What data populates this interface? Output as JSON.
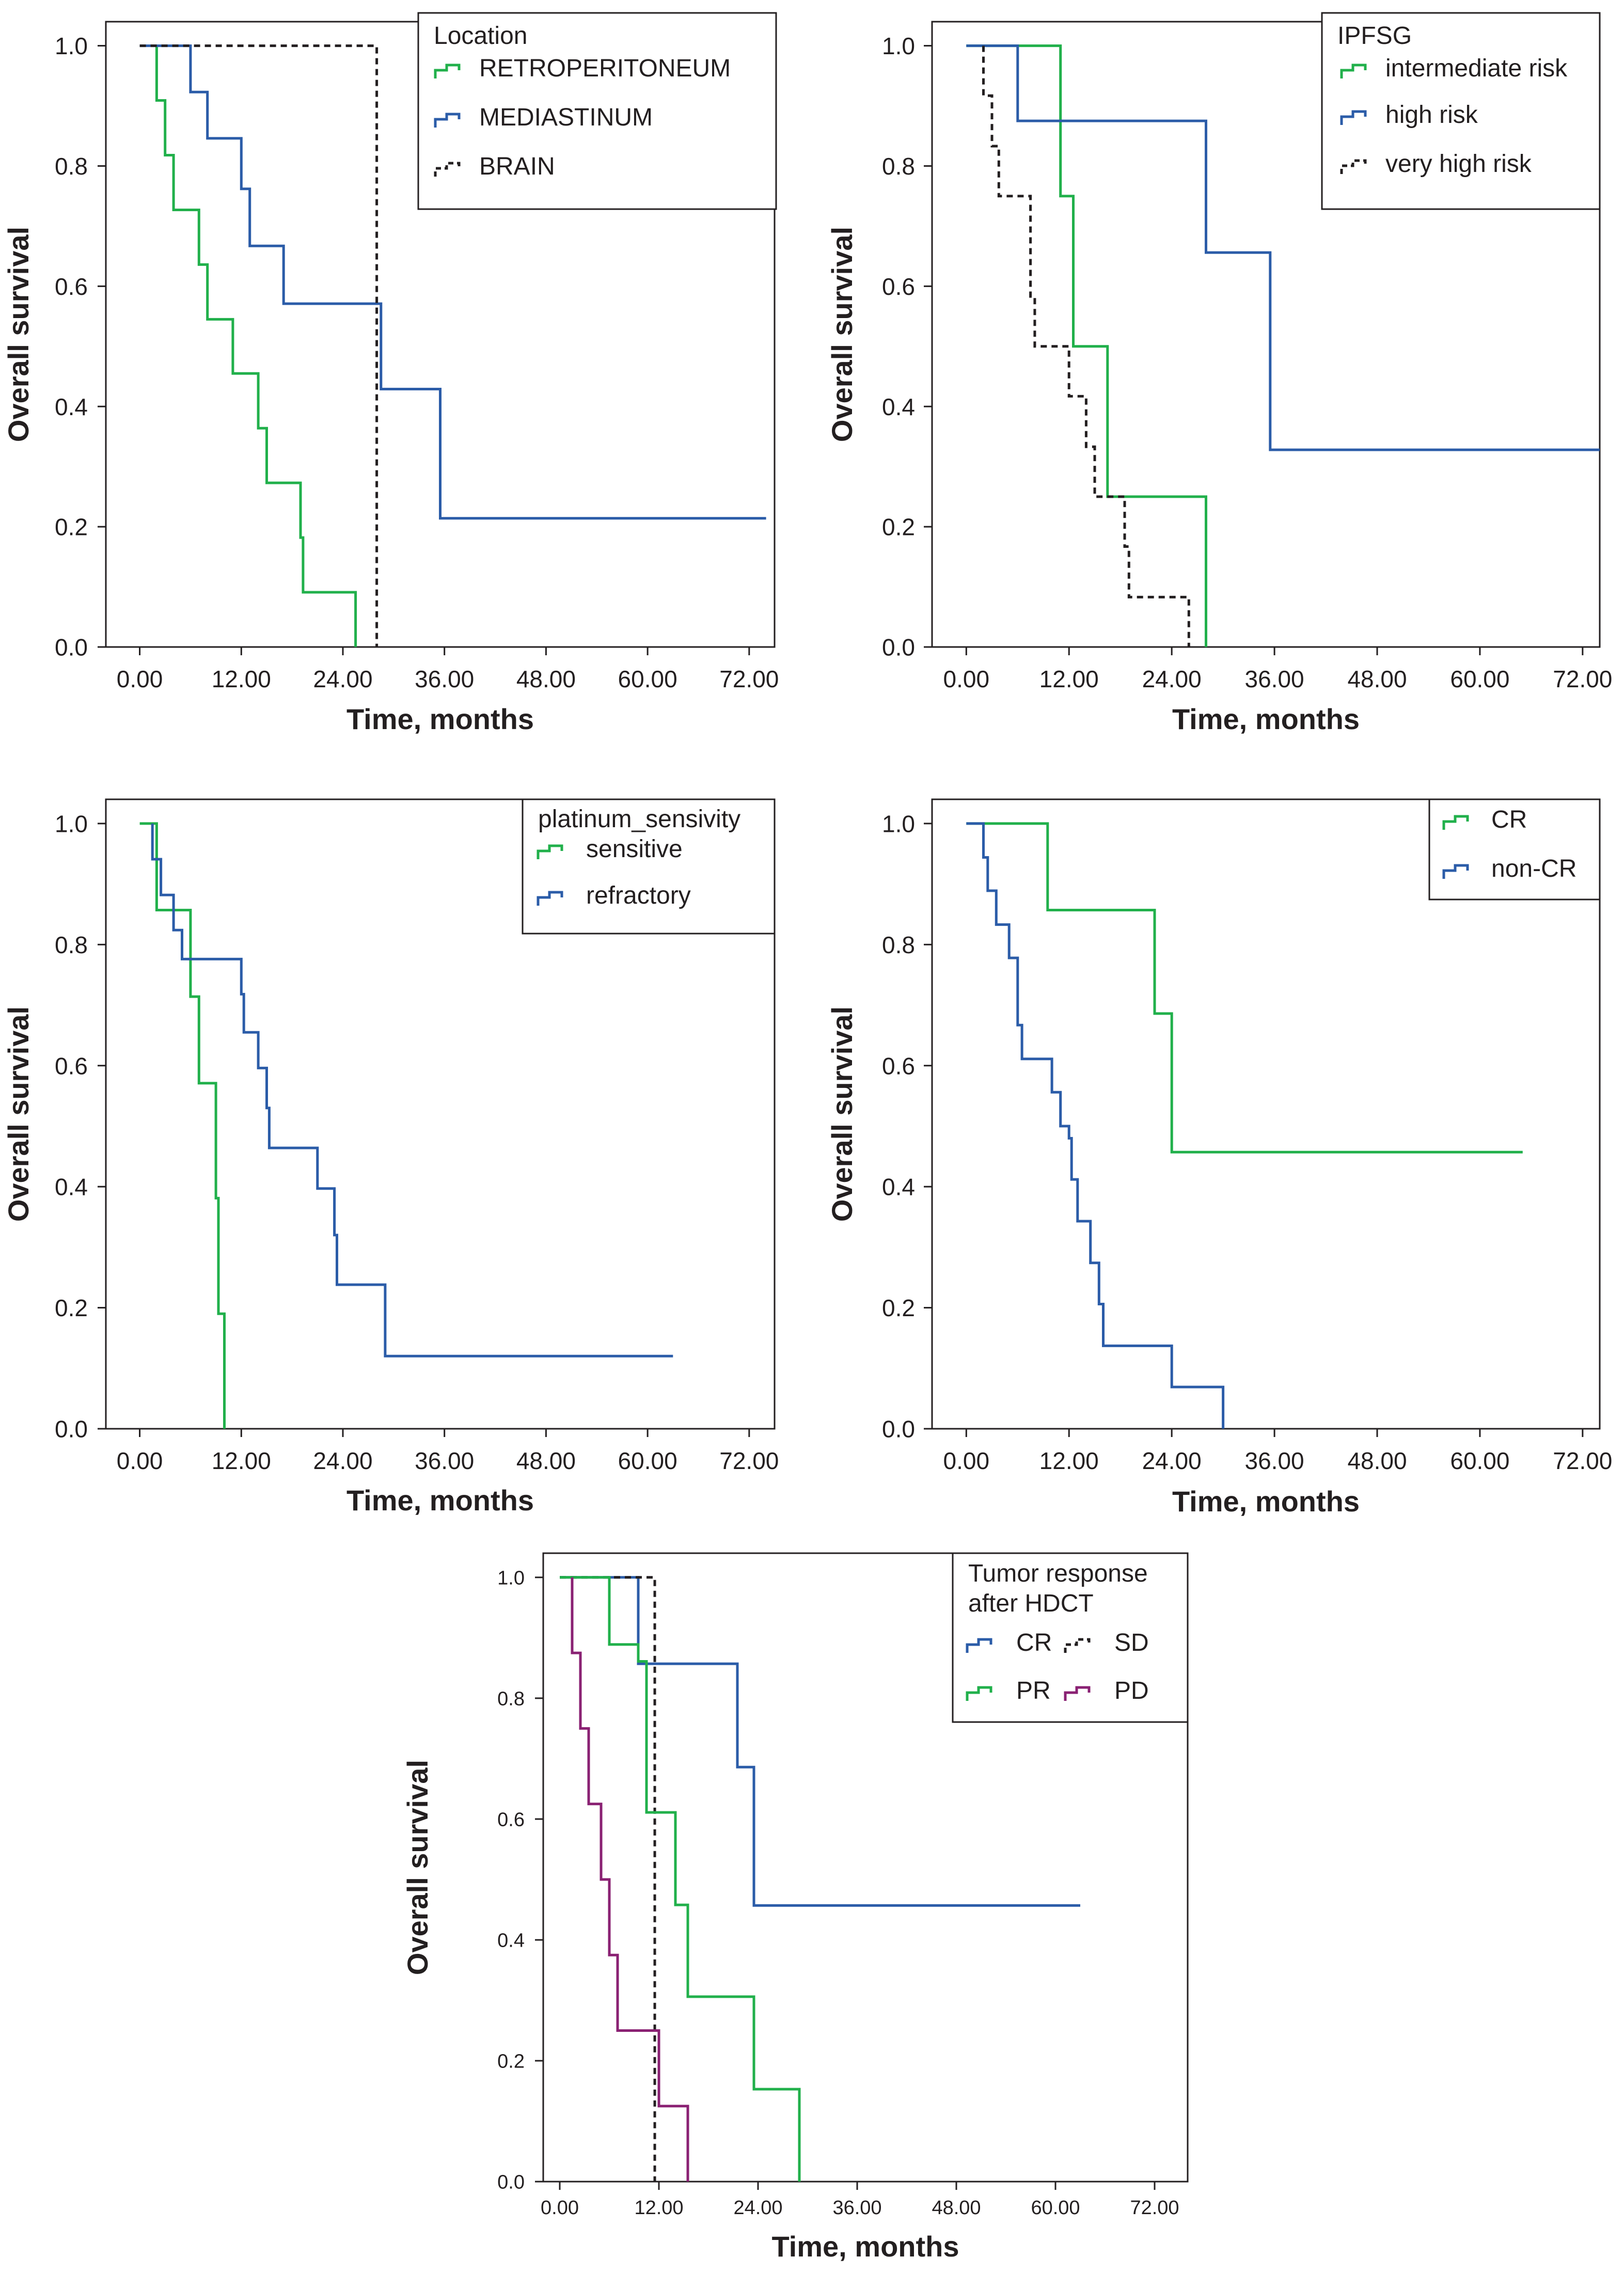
{
  "colors": {
    "green": "#21b04b",
    "blue": "#2b5ca8",
    "black": "#231f20",
    "purple": "#8a2173"
  },
  "chart_data": [
    {
      "id": "location",
      "type": "line",
      "step": true,
      "xlabel": "Time, months",
      "ylabel": "Overall survival",
      "xticks": [
        "0.00",
        "12.00",
        "24.00",
        "36.00",
        "48.00",
        "60.00",
        "72.00"
      ],
      "yticks": [
        "0.0",
        "0.2",
        "0.4",
        "0.6",
        "0.8",
        "1.0"
      ],
      "xlim": [
        -4,
        75
      ],
      "ylim": [
        0,
        1.04
      ],
      "legend": {
        "title": [
          "Location"
        ],
        "columns": 1
      },
      "series": [
        {
          "name": "RETROPERITONEUM",
          "color": "#21b04b",
          "dash": false,
          "x": [
            2,
            2,
            3,
            3,
            4,
            4,
            7,
            7,
            8,
            8,
            11,
            11,
            14,
            14,
            14.3,
            14.3,
            15,
            15,
            19,
            19,
            19.3,
            19.3,
            25.5,
            25.5
          ],
          "y": [
            1,
            0.909,
            0.909,
            0.818,
            0.818,
            0.727,
            0.727,
            0.636,
            0.636,
            0.545,
            0.545,
            0.455,
            0.455,
            0.364,
            0.364,
            0.364,
            0.364,
            0.273,
            0.273,
            0.182,
            0.182,
            0.091,
            0.091,
            0
          ]
        },
        {
          "name": "MEDIASTINUM",
          "color": "#2b5ca8",
          "dash": false,
          "x": [
            0,
            6,
            6,
            8,
            8,
            12,
            12,
            13,
            13,
            17,
            17,
            28.5,
            28.5,
            35.5,
            35.5,
            74
          ],
          "y": [
            1,
            1,
            0.923,
            0.923,
            0.846,
            0.846,
            0.762,
            0.762,
            0.667,
            0.667,
            0.571,
            0.571,
            0.429,
            0.429,
            0.214,
            0.214
          ]
        },
        {
          "name": "BRAIN",
          "color": "#231f20",
          "dash": true,
          "x": [
            0,
            28,
            28
          ],
          "y": [
            1,
            1,
            0
          ]
        }
      ]
    },
    {
      "id": "ipfsg",
      "type": "line",
      "step": true,
      "xlabel": "Time, months",
      "ylabel": "Overall survival",
      "xticks": [
        "0.00",
        "12.00",
        "24.00",
        "36.00",
        "48.00",
        "60.00",
        "72.00"
      ],
      "yticks": [
        "0.0",
        "0.2",
        "0.4",
        "0.6",
        "0.8",
        "1.0"
      ],
      "xlim": [
        -4,
        74
      ],
      "ylim": [
        0,
        1.04
      ],
      "legend": {
        "title": [
          "IPFSG"
        ],
        "columns": 1
      },
      "series": [
        {
          "name": "intermediate risk",
          "color": "#21b04b",
          "dash": false,
          "x": [
            0,
            11,
            11,
            12.5,
            12.5,
            16.5,
            16.5,
            28,
            28
          ],
          "y": [
            1,
            1,
            0.75,
            0.75,
            0.5,
            0.5,
            0.25,
            0.25,
            0
          ]
        },
        {
          "name": "high risk",
          "color": "#2b5ca8",
          "dash": false,
          "x": [
            0,
            6,
            6,
            28,
            28,
            35.5,
            35.5,
            74
          ],
          "y": [
            1,
            1,
            0.875,
            0.875,
            0.656,
            0.656,
            0.328,
            0.328
          ]
        },
        {
          "name": "very high risk",
          "color": "#231f20",
          "dash": true,
          "x": [
            2,
            2,
            3,
            3,
            3.8,
            3.8,
            6,
            6,
            7.5,
            7.5,
            8,
            8,
            11,
            11,
            12,
            12,
            14,
            14,
            15,
            15,
            18.5,
            18.5,
            19,
            19,
            26,
            26
          ],
          "y": [
            1,
            0.917,
            0.917,
            0.833,
            0.833,
            0.75,
            0.75,
            0.75,
            0.75,
            0.583,
            0.583,
            0.5,
            0.5,
            0.5,
            0.5,
            0.417,
            0.417,
            0.333,
            0.333,
            0.25,
            0.25,
            0.167,
            0.167,
            0.083,
            0.083,
            0
          ]
        }
      ]
    },
    {
      "id": "platinum",
      "type": "line",
      "step": true,
      "xlabel": "Time, months",
      "ylabel": "Overall survival",
      "xticks": [
        "0.00",
        "12.00",
        "24.00",
        "36.00",
        "48.00",
        "60.00",
        "72.00"
      ],
      "yticks": [
        "0.0",
        "0.2",
        "0.4",
        "0.6",
        "0.8",
        "1.0"
      ],
      "xlim": [
        -4,
        75
      ],
      "ylim": [
        0,
        1.04
      ],
      "legend": {
        "title": [
          "platinum_sensivity"
        ],
        "columns": 1
      },
      "series": [
        {
          "name": "sensitive",
          "color": "#21b04b",
          "dash": false,
          "x": [
            0,
            2,
            2,
            6,
            6,
            7,
            7,
            9,
            9,
            9.3,
            9.3,
            10,
            10
          ],
          "y": [
            1,
            1,
            0.857,
            0.857,
            0.714,
            0.714,
            0.571,
            0.571,
            0.381,
            0.381,
            0.19,
            0.19,
            0
          ]
        },
        {
          "name": "refractory",
          "color": "#2b5ca8",
          "dash": false,
          "x": [
            1.5,
            1.5,
            2.5,
            2.5,
            4,
            4,
            5,
            5,
            12,
            12,
            12.3,
            12.3,
            14,
            14,
            15,
            15,
            15.3,
            15.3,
            21,
            21,
            23,
            23,
            23.3,
            23.3,
            29,
            29,
            63
          ],
          "y": [
            1,
            0.941,
            0.941,
            0.882,
            0.882,
            0.824,
            0.824,
            0.776,
            0.776,
            0.718,
            0.718,
            0.655,
            0.655,
            0.596,
            0.596,
            0.53,
            0.53,
            0.464,
            0.464,
            0.397,
            0.397,
            0.32,
            0.32,
            0.238,
            0.238,
            0.12,
            0.12
          ]
        }
      ]
    },
    {
      "id": "cr",
      "type": "line",
      "step": true,
      "xlabel": "Time, months",
      "ylabel": "Overall survival",
      "xticks": [
        "0.00",
        "12.00",
        "24.00",
        "36.00",
        "48.00",
        "60.00",
        "72.00"
      ],
      "yticks": [
        "0.0",
        "0.2",
        "0.4",
        "0.6",
        "0.8",
        "1.0"
      ],
      "xlim": [
        -4,
        74
      ],
      "ylim": [
        0,
        1.04
      ],
      "legend": {
        "title": [],
        "columns": 1
      },
      "series": [
        {
          "name": "CR",
          "color": "#21b04b",
          "dash": false,
          "x": [
            0,
            9.5,
            9.5,
            22,
            22,
            24,
            24,
            65
          ],
          "y": [
            1,
            1,
            0.857,
            0.857,
            0.686,
            0.686,
            0.457,
            0.457
          ]
        },
        {
          "name": "non-CR",
          "color": "#2b5ca8",
          "dash": false,
          "x": [
            0,
            2,
            2,
            2.5,
            2.5,
            3.5,
            3.5,
            5,
            5,
            6,
            6,
            6.5,
            6.5,
            10,
            10,
            11,
            11,
            12,
            12,
            12.3,
            12.3,
            13,
            13,
            14.5,
            14.5,
            15.5,
            15.5,
            16,
            16,
            24,
            24,
            30,
            30
          ],
          "y": [
            1,
            1,
            0.944,
            0.944,
            0.889,
            0.889,
            0.833,
            0.833,
            0.778,
            0.778,
            0.667,
            0.667,
            0.611,
            0.611,
            0.556,
            0.556,
            0.5,
            0.5,
            0.48,
            0.48,
            0.412,
            0.412,
            0.343,
            0.343,
            0.274,
            0.274,
            0.206,
            0.206,
            0.137,
            0.137,
            0.069,
            0.069,
            0
          ]
        }
      ]
    },
    {
      "id": "tumor-response",
      "type": "line",
      "step": true,
      "xlabel": "Time, months",
      "ylabel": "Overall survival",
      "xticks": [
        "0.00",
        "12.00",
        "24.00",
        "36.00",
        "48.00",
        "60.00",
        "72.00"
      ],
      "yticks": [
        "0.0",
        "0.2",
        "0.4",
        "0.6",
        "0.8",
        "1.0"
      ],
      "xlim": [
        -2,
        76
      ],
      "ylim": [
        0,
        1.04
      ],
      "legend": {
        "title": [
          "Tumor response",
          "after HDCT"
        ],
        "columns": 2
      },
      "series": [
        {
          "name": "CR",
          "color": "#2b5ca8",
          "dash": false,
          "x": [
            0,
            9.5,
            9.5,
            21.5,
            21.5,
            23.5,
            23.5,
            63
          ],
          "y": [
            1,
            1,
            0.857,
            0.857,
            0.686,
            0.686,
            0.457,
            0.457
          ]
        },
        {
          "name": "SD",
          "color": "#231f20",
          "dash": true,
          "x": [
            0,
            11.5,
            11.5
          ],
          "y": [
            1,
            1,
            0
          ]
        },
        {
          "name": "PR",
          "color": "#21b04b",
          "dash": false,
          "x": [
            0,
            6,
            6,
            9.5,
            9.5,
            10.5,
            10.5,
            14,
            14,
            15.5,
            15.5,
            23.5,
            23.5,
            29,
            29
          ],
          "y": [
            1,
            1,
            0.889,
            0.889,
            0.861,
            0.861,
            0.611,
            0.611,
            0.458,
            0.458,
            0.306,
            0.306,
            0.153,
            0.153,
            0
          ]
        },
        {
          "name": "PD",
          "color": "#8a2173",
          "dash": false,
          "x": [
            1.5,
            1.5,
            2.5,
            2.5,
            3.5,
            3.5,
            5,
            5,
            6,
            6,
            7,
            7,
            12,
            12,
            15.5,
            15.5
          ],
          "y": [
            1,
            0.875,
            0.875,
            0.75,
            0.75,
            0.625,
            0.625,
            0.5,
            0.5,
            0.375,
            0.375,
            0.25,
            0.25,
            0.125,
            0.125,
            0
          ]
        }
      ]
    }
  ]
}
